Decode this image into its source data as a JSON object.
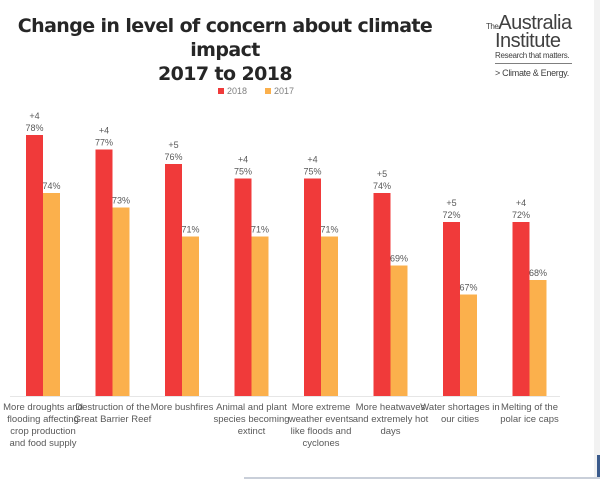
{
  "header": {
    "title_line1": "Change in level of concern about climate impact",
    "title_line2": "2017 to 2018"
  },
  "logo": {
    "the": "The",
    "line1": "Australia",
    "line2": "Institute",
    "tagline": "Research that matters.",
    "program": "> Climate & Energy."
  },
  "colors": {
    "series_2018": "#f03a3a",
    "series_2017": "#fbb04c"
  },
  "chart_data": {
    "type": "bar",
    "title": "Change in level of concern about climate impact 2017 to 2018",
    "xlabel": "",
    "ylabel": "",
    "ylim": [
      60,
      80
    ],
    "grid": false,
    "legend": {
      "placement": "top-center",
      "entries": [
        "2018",
        "2017"
      ]
    },
    "categories": [
      "More droughts and flooding affecting crop production and food supply",
      "Destruction of the Great Barrier Reef",
      "More bushfires",
      "Animal and plant species becoming extinct",
      "More extreme weather events like floods and cyclones",
      "More heatwaves and extremely hot days",
      "Water shortages in our cities",
      "Melting of the polar ice caps"
    ],
    "series": [
      {
        "name": "2018",
        "values": [
          78,
          77,
          76,
          75,
          75,
          74,
          72,
          72
        ],
        "labels": [
          "78%",
          "77%",
          "76%",
          "75%",
          "75%",
          "74%",
          "72%",
          "72%"
        ]
      },
      {
        "name": "2017",
        "values": [
          74,
          73,
          71,
          71,
          71,
          69,
          67,
          68
        ],
        "labels": [
          "74%",
          "73%",
          "71%",
          "71%",
          "71%",
          "69%",
          "67%",
          "68%"
        ]
      }
    ],
    "change_labels": [
      "+4",
      "+4",
      "+5",
      "+4",
      "+4",
      "+5",
      "+5",
      "+4"
    ]
  }
}
